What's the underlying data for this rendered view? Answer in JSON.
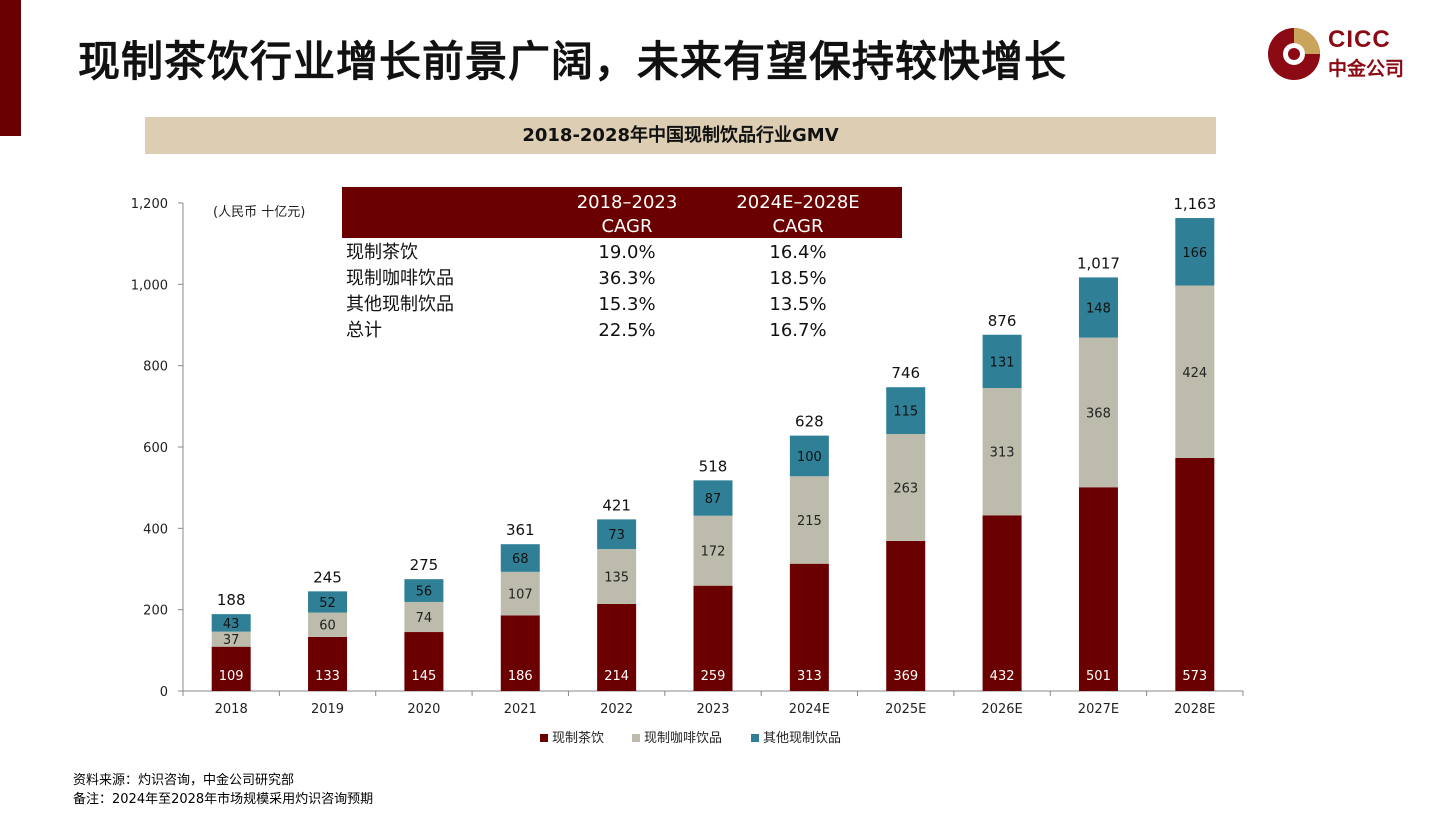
{
  "page_title": "现制茶饮行业增长前景广阔，未来有望保持较快增长",
  "logo": {
    "line1": "CICC",
    "line2": "中金公司"
  },
  "colors": {
    "brand": "#6b0000",
    "tea": "#6b0000",
    "coffee": "#bdbcac",
    "other": "#2f7f96",
    "header_bg": "#dccdb3",
    "cagr_header_bg": "#6b0000"
  },
  "chart_data": {
    "type": "bar",
    "stacked": true,
    "title": "2018-2028年中国现制饮品行业GMV",
    "unit_label": "(人民币 十亿元)",
    "categories": [
      "2018",
      "2019",
      "2020",
      "2021",
      "2022",
      "2023",
      "2024E",
      "2025E",
      "2026E",
      "2027E",
      "2028E"
    ],
    "series": [
      {
        "name": "现制茶饮",
        "values": [
          109,
          133,
          145,
          186,
          214,
          259,
          313,
          369,
          432,
          501,
          573
        ],
        "labels": [
          "109",
          "133",
          "145",
          "186",
          "214",
          "259",
          "313",
          "369",
          "432",
          "501",
          "573"
        ]
      },
      {
        "name": "现制咖啡饮品",
        "values": [
          37,
          60,
          74,
          107,
          135,
          172,
          215,
          263,
          313,
          368,
          424
        ],
        "labels": [
          "37",
          "60",
          "74",
          "107",
          "135",
          "172",
          "215",
          "263",
          "313",
          "368",
          "424"
        ]
      },
      {
        "name": "其他现制饮品",
        "values": [
          43,
          52,
          56,
          68,
          73,
          87,
          100,
          115,
          131,
          148,
          166
        ],
        "labels": [
          "43",
          "52",
          "56",
          "68",
          "73",
          "87",
          "100",
          "115",
          "131",
          "148",
          "166"
        ]
      }
    ],
    "totals": [
      188,
      245,
      275,
      361,
      421,
      518,
      628,
      746,
      876,
      1017,
      1163
    ],
    "total_labels": [
      "188",
      "245",
      "275",
      "361",
      "421",
      "518",
      "628",
      "746",
      "876",
      "1,017",
      "1,163"
    ],
    "ylim": [
      0,
      1200
    ],
    "yticks": [
      0,
      200,
      400,
      600,
      800,
      1000,
      1200
    ],
    "ytick_labels": [
      "0",
      "200",
      "400",
      "600",
      "800",
      "1,000",
      "1,200"
    ],
    "legend_position": "bottom",
    "cagr_table": {
      "headers": [
        [
          "2018–2023",
          "CAGR"
        ],
        [
          "2024E–2028E",
          "CAGR"
        ]
      ],
      "rows": [
        {
          "label": "现制茶饮",
          "v1": "19.0%",
          "v2": "16.4%"
        },
        {
          "label": "现制咖啡饮品",
          "v1": "36.3%",
          "v2": "18.5%"
        },
        {
          "label": "其他现制饮品",
          "v1": "15.3%",
          "v2": "13.5%"
        },
        {
          "label": "总计",
          "v1": "22.5%",
          "v2": "16.7%"
        }
      ]
    }
  },
  "footnotes": {
    "source": "资料来源：灼识咨询，中金公司研究部",
    "note": "备注：2024年至2028年市场规模采用灼识咨询预期"
  }
}
